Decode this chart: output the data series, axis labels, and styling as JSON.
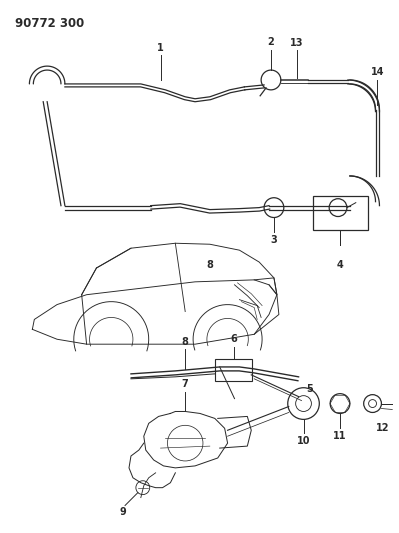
{
  "title": "90772 300",
  "bg_color": "#ffffff",
  "line_color": "#2a2a2a",
  "title_fontsize": 8.5,
  "label_fontsize": 7,
  "fig_width": 3.99,
  "fig_height": 5.33,
  "dpi": 100
}
